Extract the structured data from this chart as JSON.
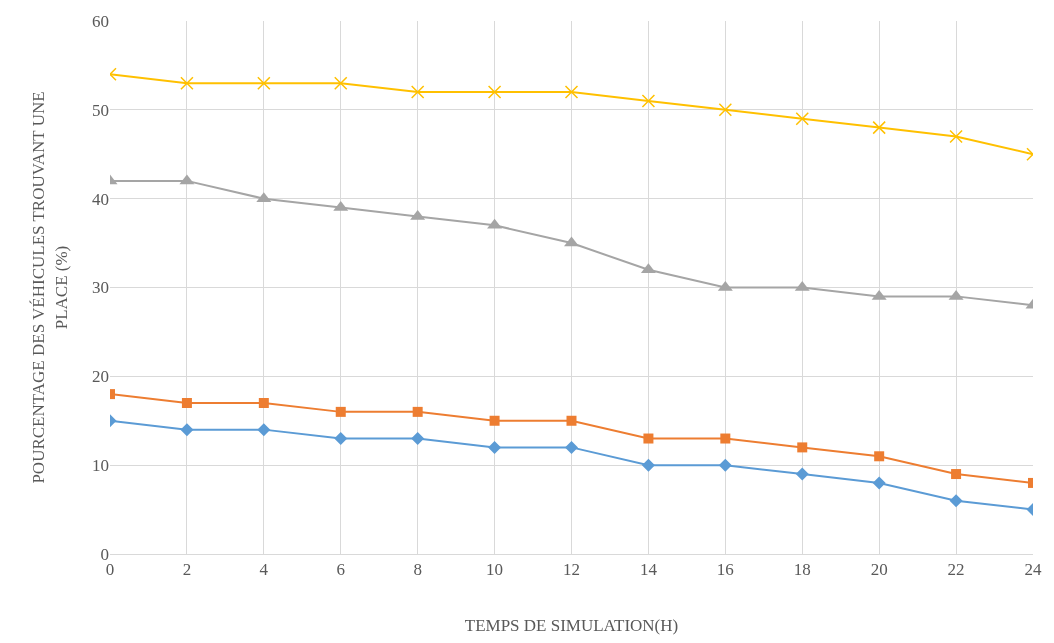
{
  "chart_data": {
    "type": "line",
    "xlabel": "TEMPS DE SIMULATION(H)",
    "ylabel": "POURCENTAGE DES VÉHICULES TROUVANT UNE PLACE (%)",
    "x": [
      0,
      2,
      4,
      6,
      8,
      10,
      12,
      14,
      16,
      18,
      20,
      22,
      24
    ],
    "series": [
      {
        "color": "#5b9bd5",
        "marker": "diamond",
        "values": [
          15,
          14,
          14,
          13,
          13,
          12,
          12,
          10,
          10,
          9,
          8,
          6,
          5
        ]
      },
      {
        "color": "#ed7d31",
        "marker": "square",
        "values": [
          18,
          17,
          17,
          16,
          16,
          15,
          15,
          13,
          13,
          12,
          11,
          9,
          8
        ]
      },
      {
        "color": "#a5a5a5",
        "marker": "triangle",
        "values": [
          42,
          42,
          40,
          39,
          38,
          37,
          35,
          32,
          30,
          30,
          29,
          29,
          28
        ]
      },
      {
        "color": "#ffc000",
        "marker": "cross",
        "values": [
          54,
          53,
          53,
          53,
          52,
          52,
          52,
          51,
          50,
          49,
          48,
          47,
          45
        ]
      }
    ],
    "xlim": [
      0,
      24
    ],
    "xticks": [
      0,
      2,
      4,
      6,
      8,
      10,
      12,
      14,
      16,
      18,
      20,
      22,
      24
    ],
    "ylim": [
      0,
      60
    ],
    "yticks": [
      0,
      10,
      20,
      30,
      40,
      50,
      60
    ],
    "grid": true,
    "line_style": "solid"
  }
}
